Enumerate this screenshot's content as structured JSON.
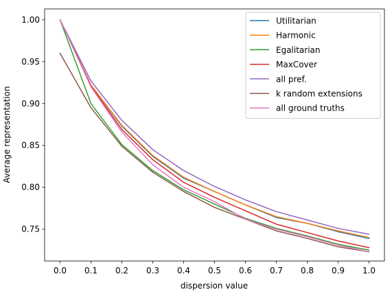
{
  "chart_data": {
    "type": "line",
    "xlabel": "dispersion value",
    "ylabel": "Average representation",
    "xlim": [
      -0.05,
      1.05
    ],
    "ylim": [
      0.712,
      1.013
    ],
    "x": [
      0.0,
      0.1,
      0.2,
      0.3,
      0.4,
      0.5,
      0.6,
      0.7,
      0.8,
      0.9,
      1.0
    ],
    "xticks": [
      0.0,
      0.1,
      0.2,
      0.3,
      0.4,
      0.5,
      0.6,
      0.7,
      0.8,
      0.9,
      1.0
    ],
    "xtick_labels": [
      "0.0",
      "0.1",
      "0.2",
      "0.3",
      "0.4",
      "0.5",
      "0.6",
      "0.7",
      "0.8",
      "0.9",
      "1.0"
    ],
    "yticks": [
      0.75,
      0.8,
      0.85,
      0.9,
      0.95,
      1.0
    ],
    "ytick_labels": [
      "0.75",
      "0.80",
      "0.85",
      "0.90",
      "0.95",
      "1.00"
    ],
    "legend_position": "top-right",
    "grid": false,
    "series": [
      {
        "name": "Utilitarian",
        "color": "#1f77b4",
        "values": [
          1.0,
          0.922,
          0.873,
          0.837,
          0.811,
          0.795,
          0.779,
          0.764,
          0.757,
          0.747,
          0.739
        ]
      },
      {
        "name": "Harmonic",
        "color": "#ff7f0e",
        "values": [
          1.0,
          0.922,
          0.874,
          0.838,
          0.812,
          0.795,
          0.779,
          0.765,
          0.757,
          0.748,
          0.74
        ]
      },
      {
        "name": "Egalitarian",
        "color": "#2ca02c",
        "values": [
          1.0,
          0.9,
          0.851,
          0.82,
          0.797,
          0.78,
          0.763,
          0.751,
          0.742,
          0.732,
          0.725
        ]
      },
      {
        "name": "MaxCover",
        "color": "#d62728",
        "values": [
          1.0,
          0.921,
          0.869,
          0.833,
          0.806,
          0.788,
          0.772,
          0.756,
          0.746,
          0.736,
          0.728
        ]
      },
      {
        "name": "all pref.",
        "color": "#9467bd",
        "values": [
          1.0,
          0.927,
          0.88,
          0.845,
          0.82,
          0.801,
          0.785,
          0.771,
          0.761,
          0.751,
          0.744
        ]
      },
      {
        "name": "k random extensions",
        "color": "#8c564b",
        "values": [
          0.96,
          0.895,
          0.849,
          0.818,
          0.795,
          0.776,
          0.762,
          0.748,
          0.739,
          0.729,
          0.723
        ]
      },
      {
        "name": "all ground truths",
        "color": "#e377c2",
        "values": [
          1.0,
          0.92,
          0.866,
          0.827,
          0.8,
          0.783,
          0.762,
          0.75,
          0.741,
          0.731,
          0.723
        ]
      }
    ]
  }
}
